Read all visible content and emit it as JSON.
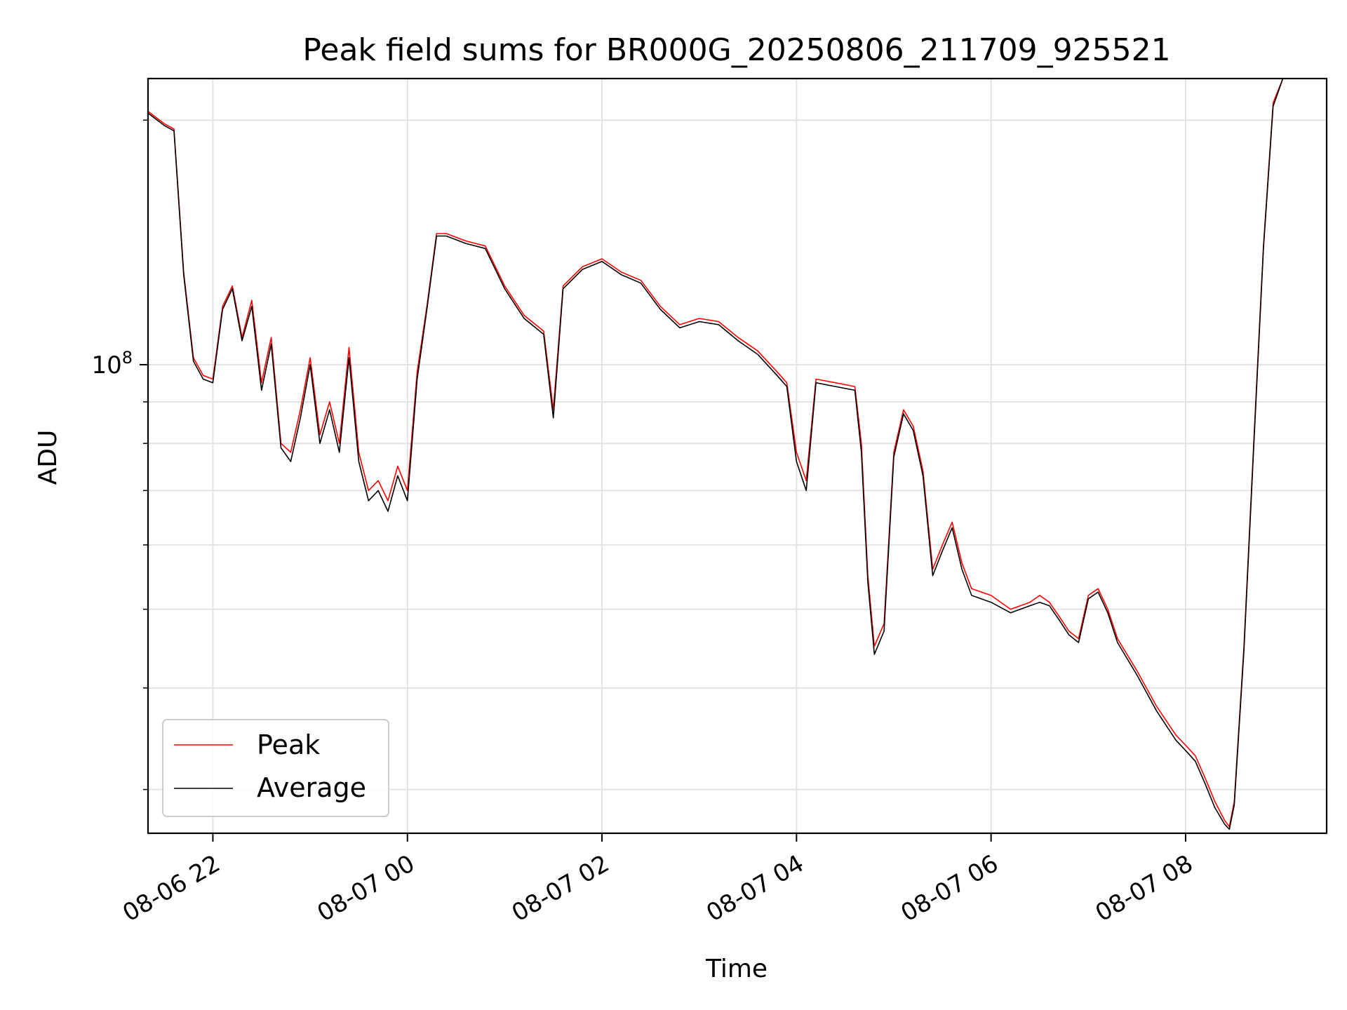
{
  "chart_data": {
    "type": "line",
    "title": "Peak field sums for BR000G_20250806_211709_925521",
    "xlabel": "Time",
    "ylabel": "ADU",
    "y_scale": "log",
    "grid": true,
    "legend_position": "lower-left",
    "xlim": [
      "2025-08-06 21:20",
      "2025-08-07 09:27"
    ],
    "ylim": [
      26500000,
      225000000
    ],
    "x_ticks": [
      "08-06 22",
      "08-07 00",
      "08-07 02",
      "08-07 04",
      "08-07 06",
      "08-07 08"
    ],
    "x_tick_times": [
      "2025-08-06 22:00",
      "2025-08-07 00:00",
      "2025-08-07 02:00",
      "2025-08-07 04:00",
      "2025-08-07 06:00",
      "2025-08-07 08:00"
    ],
    "y_ticks": [
      {
        "value": 100000000,
        "base": "10",
        "exp": "8"
      }
    ],
    "series": [
      {
        "name": "Peak",
        "color": "#ff0000",
        "x": [
          "2025-08-06 21:20",
          "2025-08-06 21:30",
          "2025-08-06 21:36",
          "2025-08-06 21:42",
          "2025-08-06 21:48",
          "2025-08-06 21:54",
          "2025-08-06 22:00",
          "2025-08-06 22:06",
          "2025-08-06 22:12",
          "2025-08-06 22:18",
          "2025-08-06 22:24",
          "2025-08-06 22:30",
          "2025-08-06 22:36",
          "2025-08-06 22:42",
          "2025-08-06 22:48",
          "2025-08-06 22:54",
          "2025-08-06 23:00",
          "2025-08-06 23:06",
          "2025-08-06 23:12",
          "2025-08-06 23:18",
          "2025-08-06 23:24",
          "2025-08-06 23:30",
          "2025-08-06 23:36",
          "2025-08-06 23:42",
          "2025-08-06 23:48",
          "2025-08-06 23:54",
          "2025-08-07 00:00",
          "2025-08-07 00:06",
          "2025-08-07 00:12",
          "2025-08-07 00:18",
          "2025-08-07 00:24",
          "2025-08-07 00:36",
          "2025-08-07 00:48",
          "2025-08-07 01:00",
          "2025-08-07 01:12",
          "2025-08-07 01:24",
          "2025-08-07 01:30",
          "2025-08-07 01:36",
          "2025-08-07 01:48",
          "2025-08-07 02:00",
          "2025-08-07 02:12",
          "2025-08-07 02:24",
          "2025-08-07 02:36",
          "2025-08-07 02:48",
          "2025-08-07 03:00",
          "2025-08-07 03:12",
          "2025-08-07 03:24",
          "2025-08-07 03:36",
          "2025-08-07 03:48",
          "2025-08-07 03:54",
          "2025-08-07 04:00",
          "2025-08-07 04:06",
          "2025-08-07 04:12",
          "2025-08-07 04:24",
          "2025-08-07 04:36",
          "2025-08-07 04:40",
          "2025-08-07 04:44",
          "2025-08-07 04:48",
          "2025-08-07 04:54",
          "2025-08-07 05:00",
          "2025-08-07 05:06",
          "2025-08-07 05:12",
          "2025-08-07 05:18",
          "2025-08-07 05:24",
          "2025-08-07 05:30",
          "2025-08-07 05:36",
          "2025-08-07 05:42",
          "2025-08-07 05:48",
          "2025-08-07 06:00",
          "2025-08-07 06:12",
          "2025-08-07 06:24",
          "2025-08-07 06:30",
          "2025-08-07 06:36",
          "2025-08-07 06:42",
          "2025-08-07 06:48",
          "2025-08-07 06:54",
          "2025-08-07 07:00",
          "2025-08-07 07:06",
          "2025-08-07 07:12",
          "2025-08-07 07:18",
          "2025-08-07 07:30",
          "2025-08-07 07:42",
          "2025-08-07 07:54",
          "2025-08-07 08:00",
          "2025-08-07 08:06",
          "2025-08-07 08:12",
          "2025-08-07 08:18",
          "2025-08-07 08:24",
          "2025-08-07 08:27",
          "2025-08-07 08:30",
          "2025-08-07 08:36",
          "2025-08-07 08:42",
          "2025-08-07 08:48",
          "2025-08-07 08:54",
          "2025-08-07 09:00",
          "2025-08-07 09:06",
          "2025-08-07 09:12",
          "2025-08-07 09:18"
        ],
        "y": [
          205000000,
          198000000,
          195000000,
          130000000,
          102000000,
          97000000,
          96000000,
          118000000,
          125000000,
          108000000,
          120000000,
          95000000,
          108000000,
          80000000,
          78000000,
          88000000,
          102000000,
          82000000,
          90000000,
          80000000,
          105000000,
          78000000,
          70000000,
          72000000,
          68000000,
          75000000,
          70000000,
          98000000,
          118000000,
          145000000,
          145000000,
          142000000,
          140000000,
          125000000,
          115000000,
          110000000,
          88000000,
          125000000,
          132000000,
          135000000,
          130000000,
          127000000,
          118000000,
          112000000,
          114000000,
          113000000,
          108000000,
          104000000,
          98000000,
          95000000,
          78000000,
          72000000,
          96000000,
          95000000,
          94000000,
          80000000,
          55000000,
          45000000,
          48000000,
          78000000,
          88000000,
          84000000,
          74000000,
          56000000,
          60000000,
          64000000,
          57000000,
          53000000,
          52000000,
          50000000,
          51000000,
          52000000,
          51000000,
          49000000,
          47000000,
          46000000,
          52000000,
          53000000,
          50000000,
          46000000,
          42000000,
          38000000,
          35000000,
          34000000,
          33000000,
          31000000,
          29000000,
          27500000,
          27000000,
          29000000,
          45000000,
          80000000,
          140000000,
          210000000,
          225000000,
          225000000,
          225000000,
          225000000
        ]
      },
      {
        "name": "Average",
        "color": "#000000",
        "x": [
          "2025-08-06 21:20",
          "2025-08-06 21:30",
          "2025-08-06 21:36",
          "2025-08-06 21:42",
          "2025-08-06 21:48",
          "2025-08-06 21:54",
          "2025-08-06 22:00",
          "2025-08-06 22:06",
          "2025-08-06 22:12",
          "2025-08-06 22:18",
          "2025-08-06 22:24",
          "2025-08-06 22:30",
          "2025-08-06 22:36",
          "2025-08-06 22:42",
          "2025-08-06 22:48",
          "2025-08-06 22:54",
          "2025-08-06 23:00",
          "2025-08-06 23:06",
          "2025-08-06 23:12",
          "2025-08-06 23:18",
          "2025-08-06 23:24",
          "2025-08-06 23:30",
          "2025-08-06 23:36",
          "2025-08-06 23:42",
          "2025-08-06 23:48",
          "2025-08-06 23:54",
          "2025-08-07 00:00",
          "2025-08-07 00:06",
          "2025-08-07 00:12",
          "2025-08-07 00:18",
          "2025-08-07 00:24",
          "2025-08-07 00:36",
          "2025-08-07 00:48",
          "2025-08-07 01:00",
          "2025-08-07 01:12",
          "2025-08-07 01:24",
          "2025-08-07 01:30",
          "2025-08-07 01:36",
          "2025-08-07 01:48",
          "2025-08-07 02:00",
          "2025-08-07 02:12",
          "2025-08-07 02:24",
          "2025-08-07 02:36",
          "2025-08-07 02:48",
          "2025-08-07 03:00",
          "2025-08-07 03:12",
          "2025-08-07 03:24",
          "2025-08-07 03:36",
          "2025-08-07 03:48",
          "2025-08-07 03:54",
          "2025-08-07 04:00",
          "2025-08-07 04:06",
          "2025-08-07 04:12",
          "2025-08-07 04:24",
          "2025-08-07 04:36",
          "2025-08-07 04:40",
          "2025-08-07 04:44",
          "2025-08-07 04:48",
          "2025-08-07 04:54",
          "2025-08-07 05:00",
          "2025-08-07 05:06",
          "2025-08-07 05:12",
          "2025-08-07 05:18",
          "2025-08-07 05:24",
          "2025-08-07 05:30",
          "2025-08-07 05:36",
          "2025-08-07 05:42",
          "2025-08-07 05:48",
          "2025-08-07 06:00",
          "2025-08-07 06:12",
          "2025-08-07 06:24",
          "2025-08-07 06:30",
          "2025-08-07 06:36",
          "2025-08-07 06:42",
          "2025-08-07 06:48",
          "2025-08-07 06:54",
          "2025-08-07 07:00",
          "2025-08-07 07:06",
          "2025-08-07 07:12",
          "2025-08-07 07:18",
          "2025-08-07 07:30",
          "2025-08-07 07:42",
          "2025-08-07 07:54",
          "2025-08-07 08:00",
          "2025-08-07 08:06",
          "2025-08-07 08:12",
          "2025-08-07 08:18",
          "2025-08-07 08:24",
          "2025-08-07 08:27",
          "2025-08-07 08:30",
          "2025-08-07 08:36",
          "2025-08-07 08:42",
          "2025-08-07 08:48",
          "2025-08-07 08:54",
          "2025-08-07 09:00",
          "2025-08-07 09:06",
          "2025-08-07 09:12",
          "2025-08-07 09:18"
        ],
        "y": [
          204000000,
          197000000,
          194000000,
          129000000,
          101000000,
          96000000,
          95000000,
          117000000,
          124000000,
          107000000,
          118000000,
          93000000,
          106000000,
          79000000,
          76000000,
          86000000,
          100000000,
          80000000,
          88000000,
          78000000,
          102000000,
          76000000,
          68000000,
          70000000,
          66000000,
          73000000,
          68000000,
          96000000,
          117000000,
          144000000,
          144000000,
          141000000,
          139000000,
          124000000,
          114000000,
          109000000,
          86000000,
          124000000,
          131000000,
          134000000,
          129000000,
          126000000,
          117000000,
          111000000,
          113000000,
          112000000,
          107000000,
          103000000,
          97000000,
          94000000,
          76000000,
          70000000,
          95000000,
          94000000,
          93000000,
          78000000,
          54000000,
          44000000,
          47000000,
          77000000,
          87000000,
          83000000,
          73000000,
          55000000,
          59000000,
          63000000,
          56000000,
          52000000,
          51000000,
          49500000,
          50500000,
          51000000,
          50500000,
          48500000,
          46500000,
          45500000,
          51500000,
          52500000,
          49500000,
          45500000,
          41500000,
          37500000,
          34500000,
          33500000,
          32500000,
          30500000,
          28500000,
          27200000,
          26800000,
          28700000,
          44500000,
          79000000,
          139000000,
          208000000,
          225000000,
          225000000,
          225000000,
          225000000
        ]
      }
    ]
  }
}
